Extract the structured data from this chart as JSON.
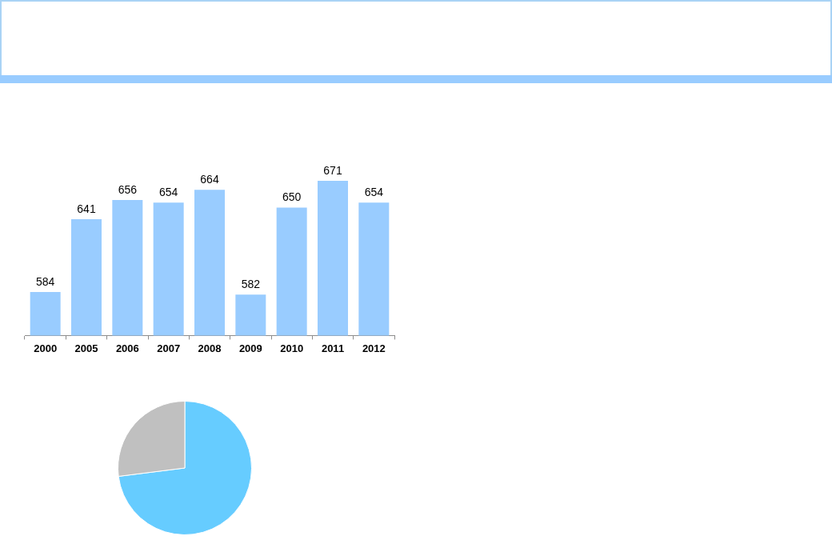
{
  "chart_data": [
    {
      "type": "bar",
      "categories": [
        "2000",
        "2005",
        "2006",
        "2007",
        "2008",
        "2009",
        "2010",
        "2011",
        "2012"
      ],
      "values": [
        584,
        641,
        656,
        654,
        664,
        582,
        650,
        671,
        654
      ],
      "color": "#99ccff",
      "data_labels": true,
      "tick_labels": "x"
    },
    {
      "type": "pie",
      "categories": [
        null,
        null
      ],
      "values": [
        73,
        27
      ],
      "colors": [
        "#66ccff",
        "#c0c0c0"
      ]
    }
  ]
}
